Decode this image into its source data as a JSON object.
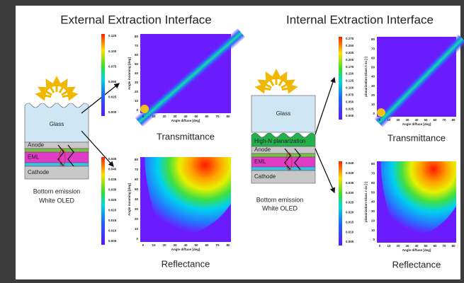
{
  "panels": [
    {
      "title": "External  Extraction Interface",
      "layers": [
        "Glass",
        "Anode",
        "EML",
        "Cathode"
      ],
      "caption": [
        "Bottom emission",
        "White OLED"
      ],
      "plots": [
        {
          "label": "Transmittance",
          "y_axis_label": "Angle incoming [deg]",
          "x_axis_label": "Angle diffuse [deg]",
          "colorbar_ticks": [
            "0.125",
            "0.100",
            "0.075",
            "0.050",
            "0.025",
            "0.000"
          ],
          "yticks": [
            "80",
            "70",
            "60",
            "50",
            "40",
            "30",
            "20",
            "10",
            "0"
          ],
          "xticks": [
            "0",
            "10",
            "20",
            "30",
            "40",
            "50",
            "60",
            "70",
            "80"
          ]
        },
        {
          "label": "Reflectance",
          "y_axis_label": "Angle incoming [deg]",
          "x_axis_label": "Angle diffuse [deg]",
          "colorbar_ticks": [
            "0.045",
            "0.040",
            "0.035",
            "0.030",
            "0.025",
            "0.020",
            "0.015",
            "0.010",
            "0.005"
          ],
          "yticks": [
            "80",
            "70",
            "60",
            "50",
            "40",
            "30",
            "20",
            "10",
            "0"
          ],
          "xticks": [
            "0",
            "10",
            "20",
            "30",
            "40",
            "50",
            "60",
            "70",
            "80"
          ]
        }
      ]
    },
    {
      "title": "Internal Extraction Interface",
      "layers": [
        "Glass",
        "High-N planarization",
        "Anode",
        "EML",
        "Cathode"
      ],
      "caption": [
        "Bottom emission",
        "White OLED"
      ],
      "plots": [
        {
          "label": "Transmittance",
          "y_axis_label": "planarization-Glass t-1s [-]",
          "x_axis_label": "Angle diffuse [deg]",
          "colorbar_ticks": [
            "0.275",
            "0.250",
            "0.225",
            "0.200",
            "0.175",
            "0.150",
            "0.125",
            "0.100",
            "0.075",
            "0.050",
            "0.025",
            "0.000"
          ],
          "yticks": [
            "80",
            "70",
            "60",
            "50",
            "40",
            "30",
            "20",
            "10",
            "0"
          ],
          "xticks": [
            "0",
            "10",
            "20",
            "30",
            "40",
            "50",
            "60",
            "70",
            "80"
          ]
        },
        {
          "label": "Reflectance",
          "y_axis_label": "planarization-Glass r-4s [-]",
          "x_axis_label": "Angle diffuse [deg]",
          "colorbar_ticks": [
            "0.045",
            "0.040",
            "0.035",
            "0.030",
            "0.025",
            "0.020",
            "0.015",
            "0.010",
            "0.005"
          ],
          "yticks": [
            "80",
            "70",
            "60",
            "50",
            "40",
            "30",
            "20",
            "10",
            "0"
          ],
          "xticks": [
            "0",
            "10",
            "20",
            "30",
            "40",
            "50",
            "60",
            "70",
            "80"
          ]
        }
      ]
    }
  ]
}
